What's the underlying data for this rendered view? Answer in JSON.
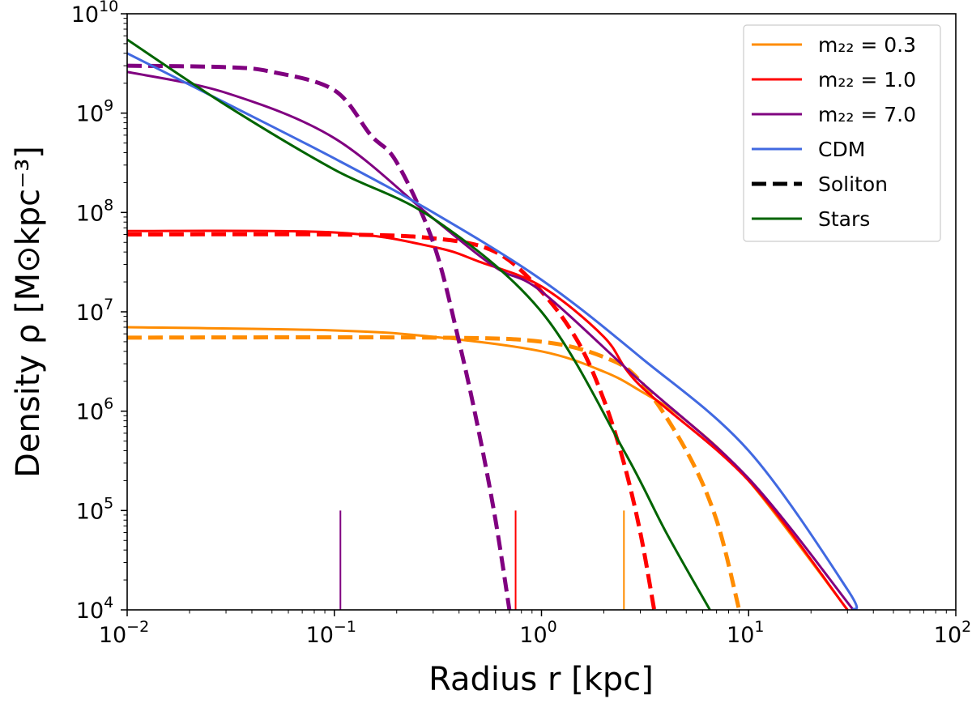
{
  "chart_data": {
    "type": "line",
    "xlabel": "Radius r [kpc]",
    "ylabel": "Density ρ [M⊙kpc⁻³]",
    "xscale": "log",
    "yscale": "log",
    "xlim": [
      0.01,
      100
    ],
    "ylim": [
      10000,
      10000000000
    ],
    "xticks": [
      {
        "base": "10",
        "exp": "−2"
      },
      {
        "base": "10",
        "exp": "−1"
      },
      {
        "base": "10",
        "exp": "0"
      },
      {
        "base": "10",
        "exp": "1"
      },
      {
        "base": "10",
        "exp": "2"
      }
    ],
    "yticks": [
      {
        "base": "10",
        "exp": "4"
      },
      {
        "base": "10",
        "exp": "5"
      },
      {
        "base": "10",
        "exp": "6"
      },
      {
        "base": "10",
        "exp": "7"
      },
      {
        "base": "10",
        "exp": "8"
      },
      {
        "base": "10",
        "exp": "9"
      },
      {
        "base": "10",
        "exp": "10"
      }
    ],
    "grid": false,
    "legend_position": "top-right",
    "legend": [
      {
        "label": "m₂₂ = 0.3",
        "color": "#ff8c00",
        "style": "solid"
      },
      {
        "label": "m₂₂ = 1.0",
        "color": "#ff0000",
        "style": "solid"
      },
      {
        "label": "m₂₂ = 7.0",
        "color": "#800080",
        "style": "solid"
      },
      {
        "label": "CDM",
        "color": "#4169e1",
        "style": "solid"
      },
      {
        "label": "Soliton",
        "color": "#000000",
        "style": "dashed"
      },
      {
        "label": "Stars",
        "color": "#006400",
        "style": "solid"
      }
    ],
    "series": [
      {
        "id": "orange-solid",
        "color": "#ff8c00",
        "style": "solid",
        "x": [
          0.01,
          0.1,
          0.3,
          1,
          2,
          3,
          5,
          10,
          30
        ],
        "y": [
          7000000.0,
          6500000.0,
          5600000.0,
          4000000.0,
          2500000.0,
          1600000.0,
          800000.0,
          200000.0,
          10000.0
        ]
      },
      {
        "id": "orange-dashed",
        "color": "#ff8c00",
        "style": "dashed",
        "x": [
          0.01,
          0.3,
          1,
          2,
          3,
          5,
          7,
          9
        ],
        "y": [
          5500000.0,
          5500000.0,
          5000000.0,
          3500000.0,
          2000000.0,
          400000.0,
          80000.0,
          10000.0
        ]
      },
      {
        "id": "red-solid",
        "color": "#ff0000",
        "style": "solid",
        "x": [
          0.01,
          0.1,
          0.3,
          0.5,
          1,
          2,
          3,
          10,
          30
        ],
        "y": [
          65000000.0,
          63000000.0,
          45000000.0,
          32000000.0,
          18000000.0,
          5600000.0,
          1800000.0,
          200000.0,
          10000.0
        ]
      },
      {
        "id": "red-dashed",
        "color": "#ff0000",
        "style": "dashed",
        "x": [
          0.01,
          0.1,
          0.3,
          0.6,
          1,
          1.5,
          2,
          2.5,
          3,
          3.5
        ],
        "y": [
          60000000.0,
          60000000.0,
          55000000.0,
          40000000.0,
          16000000.0,
          5000000.0,
          1300000.0,
          300000.0,
          60000.0,
          10000.0
        ]
      },
      {
        "id": "purple-solid",
        "color": "#800080",
        "style": "solid",
        "x": [
          0.01,
          0.03,
          0.1,
          0.3,
          0.6,
          1,
          3,
          10,
          32
        ],
        "y": [
          2600000000.0,
          1600000000.0,
          560000000.0,
          87000000.0,
          28000000.0,
          16000000.0,
          2000000.0,
          210000.0,
          10000.0
        ]
      },
      {
        "id": "purple-dashed",
        "color": "#800080",
        "style": "dashed",
        "x": [
          0.01,
          0.03,
          0.05,
          0.1,
          0.15,
          0.2,
          0.3,
          0.4,
          0.5,
          0.6,
          0.7
        ],
        "y": [
          3000000000.0,
          2900000000.0,
          2600000000.0,
          1700000000.0,
          600000000.0,
          320000000.0,
          50000000.0,
          5000000.0,
          600000.0,
          80000.0,
          10000.0
        ]
      },
      {
        "id": "cdm",
        "color": "#4169e1",
        "style": "solid",
        "x": [
          0.01,
          0.03,
          0.1,
          0.3,
          1,
          3,
          10,
          30,
          32
        ],
        "y": [
          4000000000.0,
          1260000000.0,
          350000000.0,
          100000000.0,
          21000000.0,
          3500000.0,
          400000.0,
          16000.0,
          10000.0
        ]
      },
      {
        "id": "stars",
        "color": "#006400",
        "style": "solid",
        "x": [
          0.01,
          0.03,
          0.1,
          0.3,
          1,
          2.5,
          4,
          6.5
        ],
        "y": [
          5500000000.0,
          1200000000.0,
          270000000.0,
          87000000.0,
          10000000.0,
          400000.0,
          60000.0,
          10000.0
        ]
      }
    ],
    "vertical_markers": [
      {
        "x": 0.107,
        "y": [
          10000.0,
          100000.0
        ],
        "color": "#800080"
      },
      {
        "x": 0.75,
        "y": [
          10000.0,
          100000.0
        ],
        "color": "#ff0000"
      },
      {
        "x": 2.5,
        "y": [
          10000.0,
          100000.0
        ],
        "color": "#ff8c00"
      }
    ]
  }
}
